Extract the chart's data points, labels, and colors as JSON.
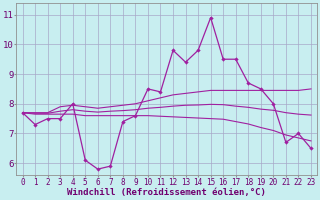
{
  "x": [
    0,
    1,
    2,
    3,
    4,
    5,
    6,
    7,
    8,
    9,
    10,
    11,
    12,
    13,
    14,
    15,
    16,
    17,
    18,
    19,
    20,
    21,
    22,
    23
  ],
  "line_main": [
    7.7,
    7.3,
    7.5,
    7.5,
    8.0,
    6.1,
    5.8,
    5.9,
    7.4,
    7.6,
    8.5,
    8.4,
    9.8,
    9.4,
    9.8,
    10.9,
    9.5,
    9.5,
    8.7,
    8.5,
    8.0,
    6.7,
    7.0,
    6.5
  ],
  "line_upper": [
    7.7,
    7.7,
    7.7,
    7.9,
    7.95,
    7.9,
    7.85,
    7.9,
    7.95,
    8.0,
    8.1,
    8.2,
    8.3,
    8.35,
    8.4,
    8.45,
    8.45,
    8.45,
    8.45,
    8.45,
    8.45,
    8.45,
    8.45,
    8.5
  ],
  "line_lower": [
    7.7,
    7.65,
    7.65,
    7.65,
    7.65,
    7.6,
    7.6,
    7.6,
    7.6,
    7.6,
    7.6,
    7.58,
    7.56,
    7.54,
    7.52,
    7.5,
    7.48,
    7.4,
    7.32,
    7.2,
    7.1,
    6.95,
    6.85,
    6.75
  ],
  "line_mid": [
    7.7,
    7.68,
    7.68,
    7.75,
    7.8,
    7.75,
    7.72,
    7.75,
    7.77,
    7.8,
    7.85,
    7.88,
    7.92,
    7.95,
    7.96,
    7.98,
    7.97,
    7.92,
    7.88,
    7.82,
    7.78,
    7.7,
    7.65,
    7.62
  ],
  "bg_color": "#c8eef0",
  "line_color": "#a020a0",
  "grid_color": "#a8a8c8",
  "xlabel": "Windchill (Refroidissement éolien,°C)",
  "ylabel_ticks": [
    6,
    7,
    8,
    9,
    10,
    11
  ],
  "xlim": [
    -0.5,
    23.5
  ],
  "ylim": [
    5.6,
    11.4
  ],
  "font_size_axis": 6.5,
  "font_size_ticks": 5.5
}
